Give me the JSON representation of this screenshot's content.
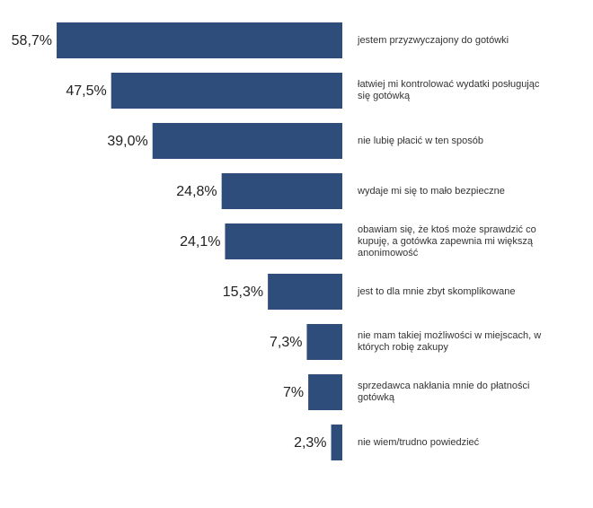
{
  "chart_data": {
    "type": "bar",
    "orientation": "horizontal",
    "color": "#2e4d7b",
    "categories": [
      "jestem przyzwyczajony do gotówki",
      "łatwiej mi kontrolować wydatki posługując się gotówką",
      "nie lubię płacić w ten sposób",
      "wydaje mi się to mało bezpieczne",
      "obawiam się, że ktoś może sprawdzić co kupuję, a gotówka zapewnia mi większą anonimowość",
      "jest to dla mnie zbyt skomplikowane",
      "nie mam takiej możliwości w miejscach, w których robię zakupy",
      "sprzedawca nakłania mnie do płatności gotówką",
      "nie wiem/trudno powiedzieć"
    ],
    "values": [
      58.7,
      47.5,
      39.0,
      24.8,
      24.1,
      15.3,
      7.3,
      7,
      2.3
    ],
    "value_labels": [
      "58,7%",
      "47,5%",
      "39,0%",
      "24,8%",
      "24,1%",
      "15,3%",
      "7,3%",
      "7%",
      "2,3%"
    ],
    "xlim": [
      0,
      60
    ]
  }
}
